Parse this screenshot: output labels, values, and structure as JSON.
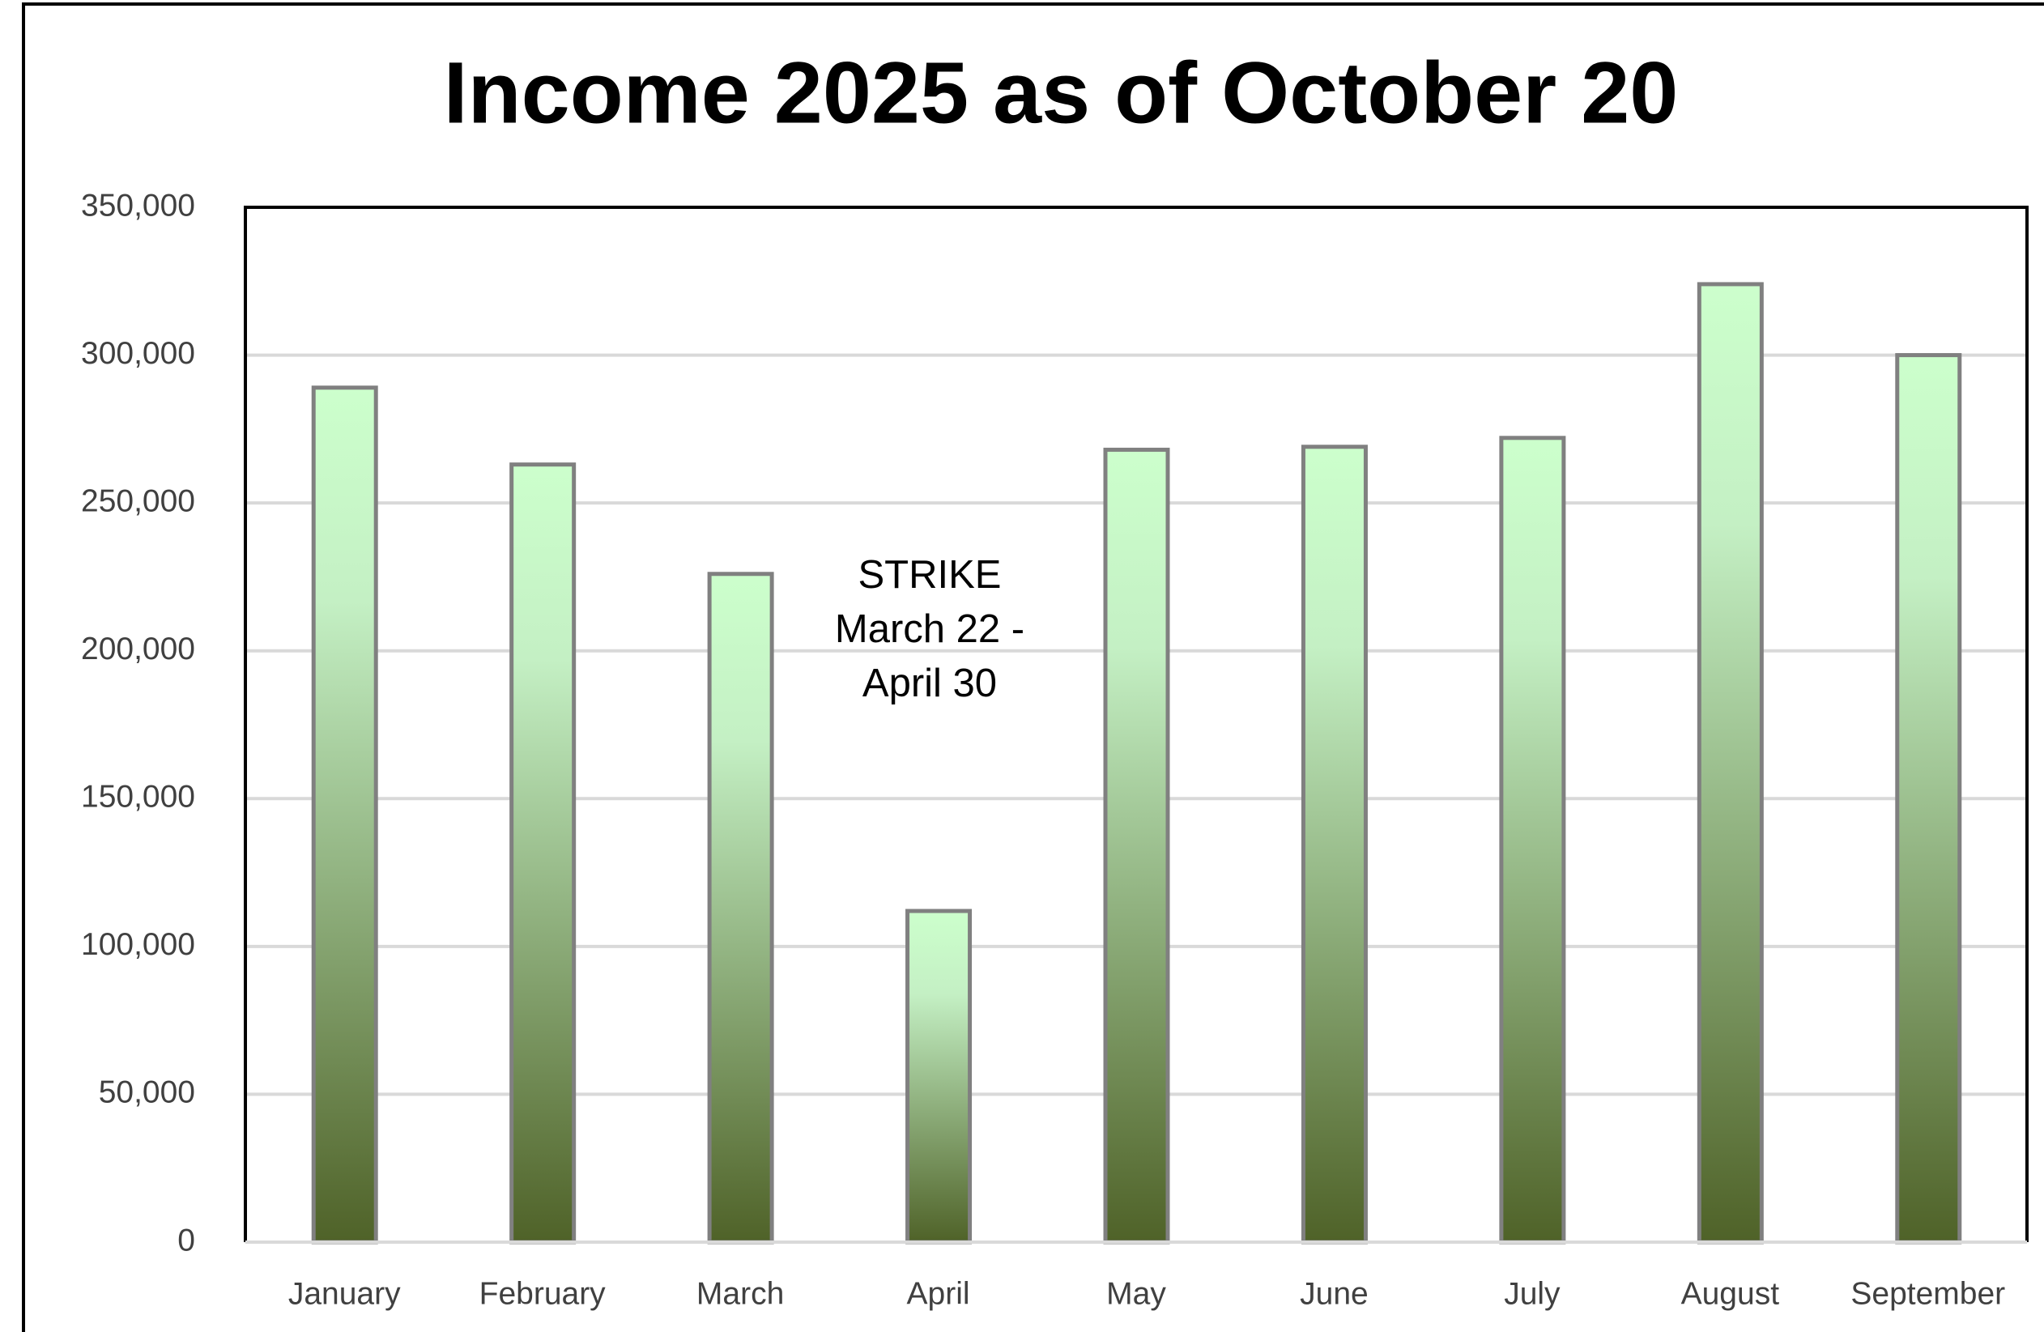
{
  "chart_data": {
    "type": "bar",
    "title": "Income 2025 as of October 20",
    "categories": [
      "January",
      "February",
      "March",
      "April",
      "May",
      "June",
      "July",
      "August",
      "September"
    ],
    "values": [
      289000,
      263000,
      226000,
      112000,
      268000,
      269000,
      272000,
      324000,
      300000
    ],
    "color": "#ccffcc",
    "ylim": [
      0,
      350000
    ],
    "yticks": [
      0,
      {
        "value": 50000,
        "label": "50,000"
      },
      {
        "value": 100000,
        "label": "100,000"
      },
      {
        "value": 150000,
        "label": "150,000"
      },
      {
        "value": 200000,
        "label": "200,000"
      },
      {
        "value": 250000,
        "label": "250,000"
      },
      {
        "value": 300000,
        "label": "300,000"
      },
      {
        "value": 350000,
        "label": "350,000"
      }
    ],
    "grid": true,
    "annotation": [
      "STRIKE",
      "March 22 -",
      "April 30"
    ]
  }
}
